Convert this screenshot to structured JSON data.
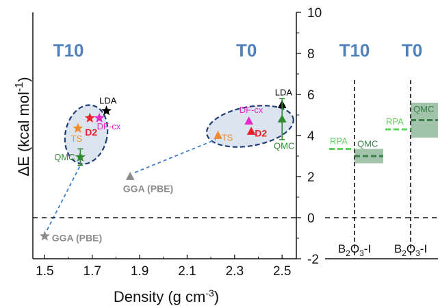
{
  "chart_data": [
    {
      "type": "scatter",
      "xlabel_main": "Density (g cm",
      "xlabel_sup": "-3",
      "xlabel_end": ")",
      "ylabel_main": "ΔE (kcal mol",
      "ylabel_sup": "-1",
      "ylabel_end": ")",
      "xlim": [
        1.45,
        2.56
      ],
      "ylim": [
        -2,
        10
      ],
      "xticks": [
        1.5,
        1.7,
        1.9,
        2.1,
        2.3,
        2.5
      ],
      "xtick_labels": [
        "1.5",
        "1.7",
        "1.9",
        "2.1",
        "2.3",
        "2.5"
      ],
      "yticks": [
        -2,
        0,
        2,
        4,
        6,
        8,
        10
      ],
      "ytick_labels": [
        "-2",
        "0",
        "2",
        "4",
        "6",
        "8",
        "10"
      ],
      "phase_titles": [
        {
          "text": "T10",
          "x": 1.6,
          "y": 7.85
        },
        {
          "text": "T0",
          "x": 2.35,
          "y": 7.85
        }
      ],
      "reference_line_y": 0,
      "points": [
        {
          "name": "LDA",
          "phase": "T10",
          "x": 1.76,
          "y": 5.2,
          "marker": "star",
          "color": "#000000"
        },
        {
          "name": "D2",
          "phase": "T10",
          "x": 1.69,
          "y": 4.85,
          "marker": "star",
          "color": "#e8202a"
        },
        {
          "name": "DF-cx",
          "phase": "T10",
          "x": 1.73,
          "y": 4.85,
          "marker": "star",
          "color": "#e628c8"
        },
        {
          "name": "TS",
          "phase": "T10",
          "x": 1.64,
          "y": 4.35,
          "marker": "star",
          "color": "#f08a2c"
        },
        {
          "name": "QMC",
          "phase": "T10",
          "x": 1.65,
          "y": 2.95,
          "yerr": 0.4,
          "marker": "star",
          "color": "#2e8b2e"
        },
        {
          "name": "GGA (PBE)",
          "phase": "T10",
          "x": 1.5,
          "y": -0.9,
          "marker": "star",
          "color": "#8c8c8c"
        },
        {
          "name": "LDA",
          "phase": "T0",
          "x": 2.5,
          "y": 5.5,
          "marker": "triangle",
          "color": "#000000"
        },
        {
          "name": "DF-cx",
          "phase": "T0",
          "x": 2.36,
          "y": 4.7,
          "marker": "triangle",
          "color": "#e628c8"
        },
        {
          "name": "D2",
          "phase": "T0",
          "x": 2.37,
          "y": 4.2,
          "marker": "triangle",
          "color": "#e8202a"
        },
        {
          "name": "TS",
          "phase": "T0",
          "x": 2.23,
          "y": 4.0,
          "marker": "triangle",
          "color": "#f08a2c"
        },
        {
          "name": "QMC",
          "phase": "T0",
          "x": 2.5,
          "y": 4.8,
          "yerr": 1.0,
          "marker": "triangle",
          "color": "#2e8b2e"
        },
        {
          "name": "GGA (PBE)",
          "phase": "T0",
          "x": 1.86,
          "y": 2.0,
          "marker": "triangle",
          "color": "#8c8c8c"
        }
      ],
      "point_labels": [
        {
          "text": "LDA",
          "x": 1.73,
          "y": 5.55,
          "color": "#000000",
          "bold": false
        },
        {
          "text": "D2",
          "x": 1.67,
          "y": 4.0,
          "color": "#e8202a",
          "bold": true
        },
        {
          "text": "DF-cx",
          "x": 1.72,
          "y": 4.3,
          "color": "#e628c8",
          "bold": false
        },
        {
          "text": "TS",
          "x": 1.61,
          "y": 3.7,
          "color": "#f08a2c",
          "bold": false
        },
        {
          "text": "QMC",
          "x": 1.54,
          "y": 2.8,
          "color": "#2e8b2e",
          "bold": false
        },
        {
          "text": "GGA (PBE)",
          "x": 1.53,
          "y": -1.15,
          "color": "#8c8c8c",
          "bold": true
        },
        {
          "text": "LDA",
          "x": 2.47,
          "y": 5.95,
          "color": "#000000",
          "bold": false
        },
        {
          "text": "DF-cx",
          "x": 2.32,
          "y": 5.1,
          "color": "#e628c8",
          "bold": false
        },
        {
          "text": "D2",
          "x": 2.385,
          "y": 3.95,
          "color": "#e8202a",
          "bold": true
        },
        {
          "text": "TS",
          "x": 2.245,
          "y": 3.75,
          "color": "#f08a2c",
          "bold": false
        },
        {
          "text": "QMC",
          "x": 2.465,
          "y": 3.35,
          "color": "#2e8b2e",
          "bold": false
        },
        {
          "text": "GGA (PBE)",
          "x": 1.83,
          "y": 1.25,
          "color": "#8c8c8c",
          "bold": true
        }
      ],
      "clusters": [
        {
          "name": "T10",
          "cx": 1.675,
          "cy": 4.05,
          "rx": 0.088,
          "ry": 1.45,
          "rotate_deg": 12
        },
        {
          "name": "T0",
          "cx": 2.365,
          "cy": 4.45,
          "rx": 0.185,
          "ry": 0.95,
          "rotate_deg": -10
        }
      ],
      "connectors": [
        {
          "from": [
            1.51,
            -0.6
          ],
          "to": [
            1.65,
            2.55
          ]
        },
        {
          "from": [
            1.88,
            2.2
          ],
          "to": [
            2.22,
            3.8
          ]
        }
      ]
    },
    {
      "type": "bar",
      "panel": "inset",
      "ylim": [
        -2,
        10
      ],
      "phase_titles": [
        "T10",
        "T0"
      ],
      "categories": [
        "B2O3-I",
        "B2O3-I"
      ],
      "category_label_main": "B",
      "category_label_sub1": "2",
      "category_label_mid": "O",
      "category_label_sub2": "3",
      "category_label_end": "-I",
      "series": [
        {
          "name": "RPA",
          "values": [
            3.35,
            4.3
          ],
          "color": "#5ad35a"
        },
        {
          "name": "QMC",
          "values": [
            3.0,
            4.75
          ],
          "err": [
            0.35,
            0.85
          ],
          "color": "#3b7f4a",
          "band_color": "#8fb89a"
        }
      ]
    }
  ]
}
